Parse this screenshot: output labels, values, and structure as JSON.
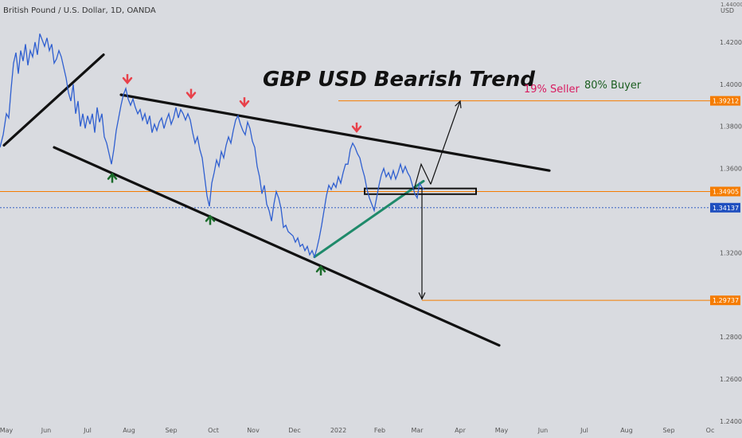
{
  "header": {
    "symbol_label": "British Pound / U.S. Dollar, 1D, OANDA"
  },
  "axis": {
    "currency_label": "USD",
    "top_tick": "1.44000"
  },
  "annotations": {
    "title": "GBP USD  Bearish Trend",
    "seller": "19% Seller",
    "buyer": "80% Buyer"
  },
  "colors": {
    "background": "#d9dbe0",
    "price_line": "#2f5fd0",
    "trend_lines": "#111111",
    "support_line": "#1f8a6a",
    "level_line": "#f57c00",
    "last_price_badge": "#1f4fbf",
    "down_arrow": "#e8414a",
    "up_arrow": "#1a6b2a",
    "seller_text": "#d81b60",
    "buyer_text": "#1b5e20"
  },
  "chart_data": {
    "type": "line",
    "series": [
      {
        "values": [
          [
            0,
            1.37
          ],
          [
            4,
            1.376
          ],
          [
            8,
            1.386
          ],
          [
            11,
            1.384
          ],
          [
            14,
            1.398
          ],
          [
            17,
            1.41
          ],
          [
            20,
            1.415
          ],
          [
            23,
            1.405
          ],
          [
            26,
            1.416
          ],
          [
            29,
            1.411
          ],
          [
            32,
            1.419
          ],
          [
            35,
            1.409
          ],
          [
            38,
            1.416
          ],
          [
            41,
            1.413
          ],
          [
            44,
            1.42
          ],
          [
            47,
            1.414
          ],
          [
            50,
            1.424
          ],
          [
            53,
            1.421
          ],
          [
            56,
            1.418
          ],
          [
            59,
            1.422
          ],
          [
            62,
            1.416
          ],
          [
            65,
            1.419
          ],
          [
            68,
            1.41
          ],
          [
            71,
            1.412
          ],
          [
            74,
            1.416
          ],
          [
            77,
            1.413
          ],
          [
            80,
            1.408
          ],
          [
            83,
            1.403
          ],
          [
            86,
            1.396
          ],
          [
            89,
            1.392
          ],
          [
            92,
            1.4
          ],
          [
            95,
            1.386
          ],
          [
            98,
            1.392
          ],
          [
            101,
            1.38
          ],
          [
            104,
            1.386
          ],
          [
            107,
            1.379
          ],
          [
            110,
            1.385
          ],
          [
            113,
            1.381
          ],
          [
            116,
            1.386
          ],
          [
            119,
            1.377
          ],
          [
            122,
            1.389
          ],
          [
            125,
            1.382
          ],
          [
            128,
            1.386
          ],
          [
            131,
            1.375
          ],
          [
            134,
            1.372
          ],
          [
            137,
            1.367
          ],
          [
            140,
            1.362
          ],
          [
            143,
            1.369
          ],
          [
            146,
            1.378
          ],
          [
            149,
            1.384
          ],
          [
            152,
            1.39
          ],
          [
            155,
            1.395
          ],
          [
            158,
            1.398
          ],
          [
            161,
            1.393
          ],
          [
            164,
            1.39
          ],
          [
            167,
            1.393
          ],
          [
            170,
            1.389
          ],
          [
            173,
            1.386
          ],
          [
            176,
            1.388
          ],
          [
            179,
            1.383
          ],
          [
            182,
            1.386
          ],
          [
            185,
            1.381
          ],
          [
            188,
            1.385
          ],
          [
            191,
            1.377
          ],
          [
            194,
            1.381
          ],
          [
            197,
            1.378
          ],
          [
            200,
            1.382
          ],
          [
            203,
            1.384
          ],
          [
            206,
            1.379
          ],
          [
            209,
            1.383
          ],
          [
            212,
            1.386
          ],
          [
            215,
            1.381
          ],
          [
            218,
            1.384
          ],
          [
            221,
            1.389
          ],
          [
            224,
            1.384
          ],
          [
            227,
            1.388
          ],
          [
            230,
            1.386
          ],
          [
            233,
            1.383
          ],
          [
            236,
            1.386
          ],
          [
            239,
            1.383
          ],
          [
            242,
            1.377
          ],
          [
            245,
            1.372
          ],
          [
            248,
            1.375
          ],
          [
            251,
            1.369
          ],
          [
            254,
            1.365
          ],
          [
            257,
            1.356
          ],
          [
            260,
            1.347
          ],
          [
            263,
            1.342
          ],
          [
            266,
            1.353
          ],
          [
            269,
            1.358
          ],
          [
            272,
            1.364
          ],
          [
            275,
            1.361
          ],
          [
            278,
            1.368
          ],
          [
            281,
            1.365
          ],
          [
            284,
            1.371
          ],
          [
            287,
            1.375
          ],
          [
            290,
            1.372
          ],
          [
            293,
            1.378
          ],
          [
            296,
            1.383
          ],
          [
            299,
            1.385
          ],
          [
            302,
            1.381
          ],
          [
            305,
            1.378
          ],
          [
            308,
            1.376
          ],
          [
            311,
            1.382
          ],
          [
            314,
            1.379
          ],
          [
            317,
            1.373
          ],
          [
            320,
            1.37
          ],
          [
            323,
            1.361
          ],
          [
            326,
            1.356
          ],
          [
            329,
            1.348
          ],
          [
            332,
            1.352
          ],
          [
            335,
            1.343
          ],
          [
            338,
            1.34
          ],
          [
            341,
            1.335
          ],
          [
            344,
            1.343
          ],
          [
            347,
            1.349
          ],
          [
            350,
            1.346
          ],
          [
            353,
            1.341
          ],
          [
            356,
            1.332
          ],
          [
            359,
            1.333
          ],
          [
            362,
            1.33
          ],
          [
            365,
            1.329
          ],
          [
            368,
            1.328
          ],
          [
            371,
            1.325
          ],
          [
            374,
            1.327
          ],
          [
            377,
            1.323
          ],
          [
            380,
            1.324
          ],
          [
            383,
            1.321
          ],
          [
            386,
            1.323
          ],
          [
            389,
            1.319
          ],
          [
            392,
            1.321
          ],
          [
            395,
            1.318
          ],
          [
            398,
            1.322
          ],
          [
            401,
            1.327
          ],
          [
            404,
            1.333
          ],
          [
            407,
            1.34
          ],
          [
            410,
            1.347
          ],
          [
            413,
            1.352
          ],
          [
            416,
            1.35
          ],
          [
            419,
            1.353
          ],
          [
            422,
            1.351
          ],
          [
            425,
            1.356
          ],
          [
            428,
            1.353
          ],
          [
            431,
            1.358
          ],
          [
            434,
            1.362
          ],
          [
            437,
            1.362
          ],
          [
            440,
            1.369
          ],
          [
            443,
            1.372
          ],
          [
            446,
            1.37
          ],
          [
            449,
            1.367
          ],
          [
            452,
            1.365
          ],
          [
            455,
            1.36
          ],
          [
            458,
            1.356
          ],
          [
            461,
            1.35
          ],
          [
            464,
            1.346
          ],
          [
            467,
            1.343
          ],
          [
            470,
            1.34
          ],
          [
            473,
            1.346
          ],
          [
            476,
            1.352
          ],
          [
            479,
            1.357
          ],
          [
            482,
            1.36
          ],
          [
            485,
            1.356
          ],
          [
            488,
            1.358
          ],
          [
            491,
            1.355
          ],
          [
            494,
            1.359
          ],
          [
            497,
            1.355
          ],
          [
            500,
            1.358
          ],
          [
            503,
            1.362
          ],
          [
            506,
            1.358
          ],
          [
            509,
            1.361
          ],
          [
            512,
            1.358
          ],
          [
            515,
            1.356
          ],
          [
            518,
            1.352
          ],
          [
            521,
            1.348
          ],
          [
            524,
            1.346
          ],
          [
            527,
            1.353
          ],
          [
            530,
            1.351
          ],
          [
            533,
            1.35
          ]
        ]
      }
    ],
    "x_tick_labels": [
      "May",
      "Jun",
      "Jul",
      "Aug",
      "Sep",
      "Oct",
      "Nov",
      "Dec",
      "2022",
      "Feb",
      "Mar",
      "Apr",
      "May",
      "Jun",
      "Jul",
      "Aug",
      "Sep",
      "Oc"
    ],
    "y_tick_labels": [
      "1.42000",
      "1.40000",
      "1.38000",
      "1.36000",
      "1.32000",
      "1.28000",
      "1.26000",
      "1.24000"
    ],
    "ylim": [
      1.232,
      1.44
    ],
    "price_levels": [
      {
        "label": "1.39212",
        "value": 1.39212,
        "style": "orange"
      },
      {
        "label": "1.34905",
        "value": 1.34905,
        "style": "orange"
      },
      {
        "label": "1.34137",
        "value": 1.34137,
        "style": "blue"
      },
      {
        "label": "1.29737",
        "value": 1.29737,
        "style": "orange"
      }
    ],
    "trend_lines": [
      {
        "from": [
          5,
          1.371
        ],
        "to": [
          130,
          1.414
        ],
        "kind": "black"
      },
      {
        "from": [
          152,
          1.395
        ],
        "to": [
          690,
          1.359
        ],
        "kind": "black"
      },
      {
        "from": [
          68,
          1.37
        ],
        "to": [
          627,
          1.276
        ],
        "kind": "black"
      },
      {
        "from": [
          395,
          1.318
        ],
        "to": [
          532,
          1.354
        ],
        "kind": "green"
      }
    ],
    "rectangle": {
      "from": [
        458,
        1.3505
      ],
      "to": [
        598,
        1.3478
      ]
    },
    "arrows": [
      {
        "from": [
          541,
          1.3525
        ],
        "to": [
          578,
          1.392
        ],
        "kind": "projection"
      },
      {
        "from": [
          530,
          1.351
        ],
        "to": [
          530,
          1.298
        ],
        "kind": "projection"
      }
    ],
    "marker_points": [
      {
        "x": 160,
        "y": 1.398,
        "dir": "down"
      },
      {
        "x": 240,
        "y": 1.391,
        "dir": "down"
      },
      {
        "x": 307,
        "y": 1.387,
        "dir": "down"
      },
      {
        "x": 448,
        "y": 1.375,
        "dir": "down"
      },
      {
        "x": 141,
        "y": 1.36,
        "dir": "up"
      },
      {
        "x": 264,
        "y": 1.34,
        "dir": "up"
      },
      {
        "x": 403,
        "y": 1.316,
        "dir": "up"
      }
    ]
  }
}
